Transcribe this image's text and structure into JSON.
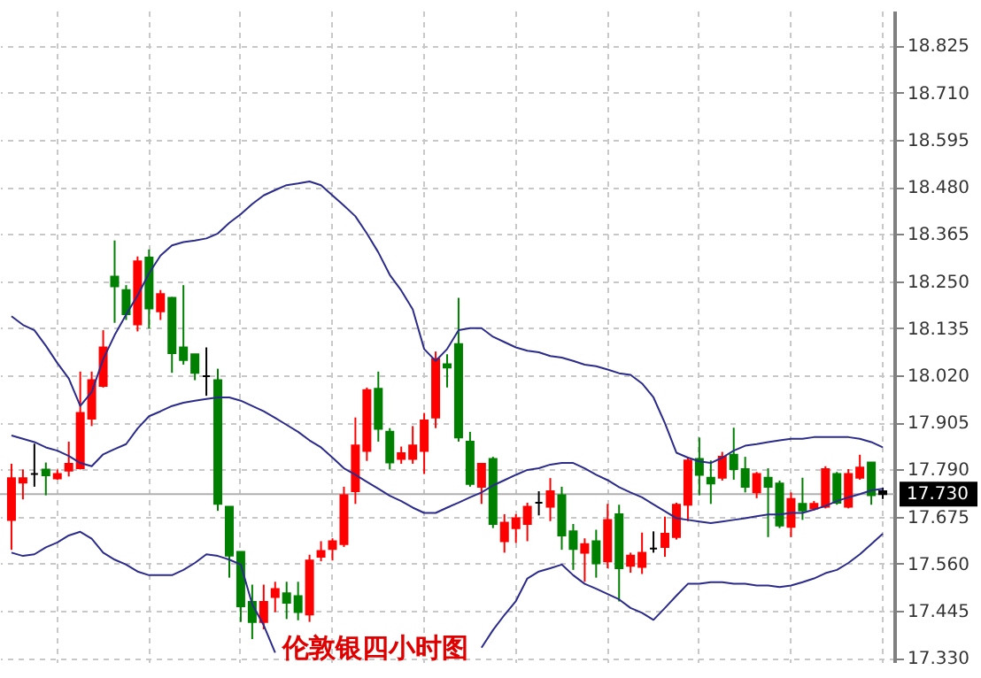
{
  "chart_data": {
    "type": "candlestick",
    "title": "伦敦银四小时图",
    "categories": [
      null,
      null,
      null,
      null,
      null,
      null,
      null,
      null,
      null,
      null,
      null,
      null,
      null,
      null,
      null,
      null,
      null,
      null,
      null,
      null,
      null,
      null,
      null,
      null,
      null,
      null,
      null,
      null,
      null,
      null,
      null,
      null,
      null,
      null,
      null,
      null,
      null,
      null,
      null,
      null,
      null,
      null,
      null,
      null,
      null,
      null,
      null,
      null,
      null,
      null,
      null,
      null,
      null,
      null,
      null,
      null,
      null,
      null,
      null,
      null,
      null,
      null,
      null,
      null,
      null,
      null,
      null,
      null,
      null,
      null,
      null,
      null,
      null,
      null,
      null,
      null,
      null
    ],
    "ohlc": [
      [
        17.667,
        17.804,
        17.594,
        17.769
      ],
      [
        17.758,
        17.79,
        17.717,
        17.769
      ],
      [
        17.779,
        17.853,
        17.748,
        17.779
      ],
      [
        17.79,
        17.807,
        17.727,
        17.776
      ],
      [
        17.768,
        17.79,
        17.765,
        17.779
      ],
      [
        17.787,
        17.858,
        17.773,
        17.804
      ],
      [
        17.793,
        18.029,
        17.79,
        17.928
      ],
      [
        17.914,
        18.029,
        17.896,
        18.008
      ],
      [
        17.994,
        18.13,
        17.99,
        18.088
      ],
      [
        18.261,
        18.349,
        18.148,
        18.237
      ],
      [
        18.228,
        18.24,
        18.155,
        18.169
      ],
      [
        18.144,
        18.31,
        18.127,
        18.298
      ],
      [
        18.307,
        18.327,
        18.134,
        18.183
      ],
      [
        18.176,
        18.228,
        18.155,
        18.218
      ],
      [
        18.209,
        18.211,
        18.026,
        18.074
      ],
      [
        18.088,
        18.24,
        18.046,
        18.057
      ],
      [
        18.071,
        18.071,
        18.008,
        18.026
      ],
      [
        18.018,
        18.088,
        17.97,
        18.018
      ],
      [
        18.008,
        18.036,
        17.689,
        17.706
      ],
      [
        17.699,
        17.699,
        17.526,
        17.58
      ],
      [
        17.589,
        17.589,
        17.418,
        17.456
      ],
      [
        17.467,
        17.509,
        17.376,
        17.418
      ],
      [
        17.418,
        17.509,
        17.4,
        17.467
      ],
      [
        17.479,
        17.516,
        17.442,
        17.498
      ],
      [
        17.488,
        17.516,
        17.425,
        17.465
      ],
      [
        17.481,
        17.516,
        17.422,
        17.442
      ],
      [
        17.436,
        17.582,
        17.418,
        17.568
      ],
      [
        17.577,
        17.615,
        17.566,
        17.591
      ],
      [
        17.596,
        17.622,
        17.568,
        17.615
      ],
      [
        17.608,
        17.748,
        17.601,
        17.727
      ],
      [
        17.737,
        17.917,
        17.706,
        17.849
      ],
      [
        17.835,
        17.99,
        17.811,
        17.984
      ],
      [
        17.987,
        18.029,
        17.858,
        17.889
      ],
      [
        17.882,
        17.891,
        17.79,
        17.807
      ],
      [
        17.816,
        17.846,
        17.804,
        17.83
      ],
      [
        17.816,
        17.896,
        17.804,
        17.849
      ],
      [
        17.835,
        17.928,
        17.779,
        17.91
      ],
      [
        17.917,
        18.078,
        17.891,
        18.06
      ],
      [
        18.047,
        18.071,
        17.99,
        18.039
      ],
      [
        18.096,
        18.209,
        17.858,
        17.868
      ],
      [
        17.858,
        17.882,
        17.748,
        17.755
      ],
      [
        17.748,
        17.804,
        17.706,
        17.804
      ],
      [
        17.816,
        17.821,
        17.647,
        17.657
      ],
      [
        17.615,
        17.681,
        17.587,
        17.66
      ],
      [
        17.647,
        17.681,
        17.611,
        17.671
      ],
      [
        17.657,
        17.709,
        17.615,
        17.699
      ],
      [
        17.709,
        17.737,
        17.678,
        17.709
      ],
      [
        17.699,
        17.769,
        17.664,
        17.737
      ],
      [
        17.727,
        17.748,
        17.594,
        17.629
      ],
      [
        17.639,
        17.657,
        17.545,
        17.596
      ],
      [
        17.587,
        17.622,
        17.516,
        17.608
      ],
      [
        17.615,
        17.643,
        17.526,
        17.561
      ],
      [
        17.566,
        17.706,
        17.549,
        17.667
      ],
      [
        17.681,
        17.704,
        17.468,
        17.549
      ],
      [
        17.555,
        17.587,
        17.538,
        17.58
      ],
      [
        17.552,
        17.636,
        17.535,
        17.587
      ],
      [
        17.597,
        17.639,
        17.587,
        17.597
      ],
      [
        17.601,
        17.675,
        17.577,
        17.633
      ],
      [
        17.625,
        17.709,
        17.619,
        17.704
      ],
      [
        17.704,
        17.821,
        17.664,
        17.812
      ],
      [
        17.816,
        17.868,
        17.727,
        17.777
      ],
      [
        17.77,
        17.812,
        17.706,
        17.756
      ],
      [
        17.77,
        17.833,
        17.763,
        17.821
      ],
      [
        17.826,
        17.892,
        17.765,
        17.791
      ],
      [
        17.791,
        17.821,
        17.734,
        17.748
      ],
      [
        17.734,
        17.784,
        17.72,
        17.779
      ],
      [
        17.77,
        17.793,
        17.625,
        17.748
      ],
      [
        17.756,
        17.763,
        17.647,
        17.653
      ],
      [
        17.65,
        17.734,
        17.625,
        17.718
      ],
      [
        17.706,
        17.77,
        17.667,
        17.69
      ],
      [
        17.695,
        17.713,
        17.69,
        17.706
      ],
      [
        17.699,
        17.798,
        17.695,
        17.791
      ],
      [
        17.779,
        17.784,
        17.704,
        17.709
      ],
      [
        17.699,
        17.791,
        17.695,
        17.779
      ],
      [
        17.77,
        17.826,
        17.765,
        17.795
      ],
      [
        17.807,
        17.807,
        17.704,
        17.727
      ],
      [
        17.737,
        17.746,
        17.718,
        17.73
      ]
    ],
    "colors": [
      "#ff0000",
      "#ff0000",
      "#000000",
      "#008000",
      "#ff0000",
      "#ff0000",
      "#ff0000",
      "#ff0000",
      "#ff0000",
      "#008000",
      "#008000",
      "#ff0000",
      "#008000",
      "#ff0000",
      "#008000",
      "#008000",
      "#008000",
      "#000000",
      "#008000",
      "#008000",
      "#008000",
      "#008000",
      "#ff0000",
      "#ff0000",
      "#008000",
      "#008000",
      "#ff0000",
      "#ff0000",
      "#ff0000",
      "#ff0000",
      "#ff0000",
      "#ff0000",
      "#008000",
      "#008000",
      "#ff0000",
      "#ff0000",
      "#ff0000",
      "#ff0000",
      "#008000",
      "#008000",
      "#008000",
      "#ff0000",
      "#008000",
      "#ff0000",
      "#ff0000",
      "#ff0000",
      "#000000",
      "#ff0000",
      "#008000",
      "#008000",
      "#ff0000",
      "#008000",
      "#ff0000",
      "#008000",
      "#ff0000",
      "#ff0000",
      "#000000",
      "#ff0000",
      "#ff0000",
      "#ff0000",
      "#008000",
      "#008000",
      "#ff0000",
      "#008000",
      "#008000",
      "#ff0000",
      "#008000",
      "#008000",
      "#ff0000",
      "#008000",
      "#ff0000",
      "#ff0000",
      "#008000",
      "#ff0000",
      "#ff0000",
      "#008000",
      "#000000"
    ],
    "series": [
      {
        "type": "line",
        "color": "#2b2b8c",
        "values": [
          18.164,
          18.143,
          18.13,
          18.092,
          18.05,
          18.012,
          17.945,
          17.979,
          18.059,
          18.118,
          18.168,
          18.215,
          18.269,
          18.312,
          18.337,
          18.345,
          18.349,
          18.354,
          18.366,
          18.392,
          18.413,
          18.438,
          18.459,
          18.472,
          18.484,
          18.488,
          18.493,
          18.484,
          18.459,
          18.434,
          18.408,
          18.366,
          18.32,
          18.265,
          18.227,
          18.181,
          18.084,
          18.055,
          18.084,
          18.13,
          18.135,
          18.135,
          18.114,
          18.101,
          18.088,
          18.08,
          18.076,
          18.067,
          18.063,
          18.055,
          18.046,
          18.042,
          18.034,
          18.025,
          18.021,
          18.0,
          17.966,
          17.903,
          17.831,
          17.819,
          17.81,
          17.806,
          17.819,
          17.836,
          17.848,
          17.852,
          17.857,
          17.861,
          17.865,
          17.865,
          17.869,
          17.869,
          17.869,
          17.869,
          17.865,
          17.857,
          17.844
        ]
      },
      {
        "type": "line",
        "color": "#2b2b8c",
        "values": [
          17.873,
          17.865,
          17.857,
          17.844,
          17.836,
          17.823,
          17.806,
          17.798,
          17.827,
          17.84,
          17.852,
          17.89,
          17.92,
          17.932,
          17.945,
          17.953,
          17.958,
          17.962,
          17.966,
          17.966,
          17.958,
          17.945,
          17.932,
          17.916,
          17.899,
          17.882,
          17.861,
          17.844,
          17.819,
          17.793,
          17.777,
          17.76,
          17.743,
          17.726,
          17.713,
          17.697,
          17.684,
          17.684,
          17.697,
          17.709,
          17.722,
          17.734,
          17.751,
          17.764,
          17.777,
          17.789,
          17.793,
          17.802,
          17.806,
          17.806,
          17.793,
          17.777,
          17.764,
          17.747,
          17.734,
          17.722,
          17.705,
          17.688,
          17.671,
          17.667,
          17.663,
          17.659,
          17.663,
          17.667,
          17.671,
          17.676,
          17.68,
          17.68,
          17.684,
          17.684,
          17.692,
          17.701,
          17.713,
          17.722,
          17.73,
          17.739,
          17.743
        ]
      },
      {
        "type": "line",
        "color": "#2b2b8c",
        "values": [
          17.587,
          17.579,
          17.583,
          17.6,
          17.612,
          17.629,
          17.638,
          17.621,
          17.587,
          17.57,
          17.558,
          17.541,
          17.532,
          17.532,
          17.532,
          17.545,
          17.562,
          17.583,
          17.579,
          17.57,
          17.558,
          17.461,
          17.41,
          17.343,
          null,
          null,
          null,
          null,
          null,
          null,
          null,
          null,
          null,
          null,
          null,
          null,
          null,
          null,
          null,
          null,
          null,
          17.355,
          17.398,
          17.435,
          17.469,
          17.524,
          17.541,
          17.549,
          17.558,
          17.532,
          17.511,
          17.499,
          17.486,
          17.473,
          17.452,
          17.44,
          17.423,
          17.452,
          17.482,
          17.511,
          17.511,
          17.515,
          17.515,
          17.511,
          17.511,
          17.507,
          17.507,
          17.503,
          17.507,
          17.515,
          17.524,
          17.537,
          17.545,
          17.562,
          17.583,
          17.608,
          17.633
        ]
      }
    ],
    "ylim": [
      17.32,
      18.91
    ],
    "yticks": [
      {
        "value": 17.33,
        "label": "17.330"
      },
      {
        "value": 17.445,
        "label": "17.445"
      },
      {
        "value": 17.56,
        "label": "17.560"
      },
      {
        "value": 17.675,
        "label": "17.675"
      },
      {
        "value": 17.79,
        "label": "17.790"
      },
      {
        "value": 17.905,
        "label": "17.905"
      },
      {
        "value": 18.02,
        "label": "18.020"
      },
      {
        "value": 18.135,
        "label": "18.135"
      },
      {
        "value": 18.25,
        "label": "18.250"
      },
      {
        "value": 18.365,
        "label": "18.365"
      },
      {
        "value": 18.48,
        "label": "18.480"
      },
      {
        "value": 18.595,
        "label": "18.595"
      },
      {
        "value": 18.71,
        "label": "18.710"
      },
      {
        "value": 18.825,
        "label": "18.825"
      }
    ],
    "ref_lines": [
      {
        "axis": "y",
        "value": 17.73,
        "label": "17.730",
        "color": "#b0b0b0"
      }
    ],
    "grid": true,
    "tick_labels": "y"
  }
}
